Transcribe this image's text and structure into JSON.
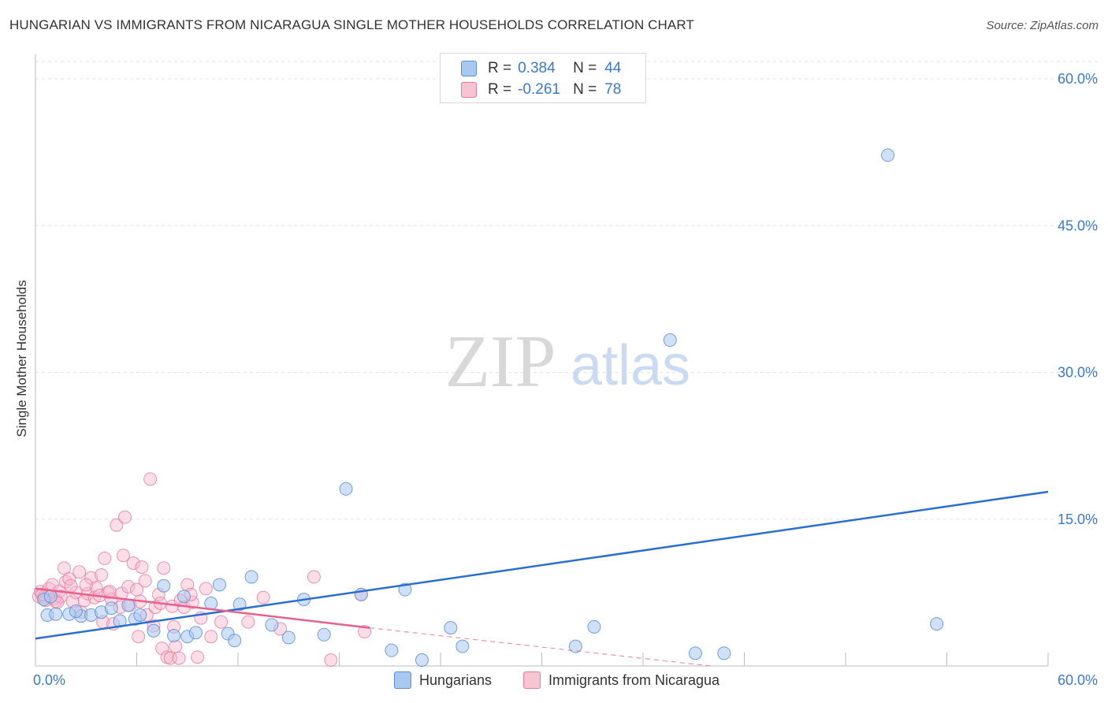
{
  "header": {
    "title": "HUNGARIAN VS IMMIGRANTS FROM NICARAGUA SINGLE MOTHER HOUSEHOLDS CORRELATION CHART",
    "source": "Source: ZipAtlas.com"
  },
  "watermark": {
    "zip": "ZIP",
    "atlas": "atlas"
  },
  "legend_box": {
    "rows": [
      {
        "r_label": "R =",
        "r_value": "0.384",
        "n_label": "N =",
        "n_value": "44"
      },
      {
        "r_label": "R =",
        "r_value": "-0.261",
        "n_label": "N =",
        "n_value": "78"
      }
    ]
  },
  "bottom_legend": [
    "Hungarians",
    "Immigrants from Nicaragua"
  ],
  "colors": {
    "blue_fill": "#a9c8f0",
    "blue_stroke": "#5b8fd6",
    "blue_line": "#2a6fd0",
    "pink_fill": "#f7b6cb",
    "pink_stroke": "#e8799c",
    "pink_line": "#e8608c",
    "tick_label": "#3a78d8",
    "grid": "#e3e3e3"
  },
  "chart_data": {
    "type": "scatter",
    "title": "HUNGARIAN VS IMMIGRANTS FROM NICARAGUA SINGLE MOTHER HOUSEHOLDS CORRELATION CHART",
    "xlabel": "",
    "ylabel": "Single Mother Households",
    "xlim": [
      0,
      60
    ],
    "ylim": [
      0,
      62.5
    ],
    "x_tick_labels": [
      "0.0%",
      "60.0%"
    ],
    "y_ticks": [
      15,
      30,
      45,
      60
    ],
    "y_tick_labels": [
      "15.0%",
      "30.0%",
      "45.0%",
      "60.0%"
    ],
    "grid": true,
    "legend_position": "top-center",
    "series": [
      {
        "name": "Hungarians",
        "R": 0.384,
        "N": 44,
        "trend": {
          "x": [
            0,
            60
          ],
          "y": [
            2.8,
            17.8
          ],
          "style": "solid"
        },
        "points": [
          [
            0.5,
            6.8
          ],
          [
            0.7,
            5.2
          ],
          [
            1.2,
            5.3
          ],
          [
            2.0,
            5.3
          ],
          [
            2.7,
            5.1
          ],
          [
            3.3,
            5.2
          ],
          [
            3.9,
            5.5
          ],
          [
            4.5,
            5.9
          ],
          [
            5.0,
            4.6
          ],
          [
            5.5,
            6.2
          ],
          [
            5.9,
            4.8
          ],
          [
            6.2,
            5.2
          ],
          [
            7.0,
            3.6
          ],
          [
            7.6,
            8.2
          ],
          [
            8.2,
            3.1
          ],
          [
            8.8,
            7.1
          ],
          [
            9.0,
            3.0
          ],
          [
            9.5,
            3.4
          ],
          [
            10.4,
            6.4
          ],
          [
            10.9,
            8.3
          ],
          [
            11.4,
            3.3
          ],
          [
            11.8,
            2.6
          ],
          [
            12.1,
            6.3
          ],
          [
            12.8,
            9.1
          ],
          [
            14.0,
            4.2
          ],
          [
            15.0,
            2.9
          ],
          [
            15.9,
            6.8
          ],
          [
            17.1,
            3.2
          ],
          [
            18.4,
            18.1
          ],
          [
            19.3,
            7.3
          ],
          [
            21.1,
            1.6
          ],
          [
            21.9,
            7.8
          ],
          [
            22.9,
            0.6
          ],
          [
            24.6,
            3.9
          ],
          [
            25.3,
            2.0
          ],
          [
            32.0,
            2.0
          ],
          [
            33.1,
            4.0
          ],
          [
            37.6,
            33.3
          ],
          [
            39.1,
            1.3
          ],
          [
            40.8,
            1.3
          ],
          [
            50.5,
            52.2
          ],
          [
            53.4,
            4.3
          ],
          [
            0.9,
            7.1
          ],
          [
            2.4,
            5.6
          ]
        ]
      },
      {
        "name": "Immigrants from Nicaragua",
        "R": -0.261,
        "N": 78,
        "trend": {
          "x": [
            0,
            19.8
          ],
          "y": [
            7.9,
            3.9
          ],
          "style": "solid",
          "extension": {
            "x": [
              19.8,
              40
            ],
            "y": [
              3.9,
              0.0
            ],
            "style": "dashed"
          }
        },
        "points": [
          [
            0.2,
            7.1
          ],
          [
            0.3,
            7.6
          ],
          [
            0.5,
            7.0
          ],
          [
            0.6,
            6.7
          ],
          [
            0.8,
            7.9
          ],
          [
            1.0,
            8.3
          ],
          [
            1.1,
            6.9
          ],
          [
            1.2,
            6.6
          ],
          [
            1.4,
            7.6
          ],
          [
            1.5,
            7.1
          ],
          [
            1.7,
            10.0
          ],
          [
            1.8,
            8.6
          ],
          [
            2.0,
            8.9
          ],
          [
            2.2,
            6.6
          ],
          [
            2.4,
            7.5
          ],
          [
            2.6,
            9.6
          ],
          [
            2.7,
            5.5
          ],
          [
            2.9,
            6.7
          ],
          [
            3.1,
            7.4
          ],
          [
            3.3,
            9.0
          ],
          [
            3.5,
            7.0
          ],
          [
            3.6,
            8.0
          ],
          [
            3.8,
            7.2
          ],
          [
            3.9,
            9.3
          ],
          [
            4.0,
            4.5
          ],
          [
            4.1,
            11.0
          ],
          [
            4.3,
            7.5
          ],
          [
            4.5,
            6.8
          ],
          [
            4.6,
            4.3
          ],
          [
            4.8,
            14.4
          ],
          [
            5.0,
            6.0
          ],
          [
            5.1,
            7.4
          ],
          [
            5.3,
            15.2
          ],
          [
            5.5,
            8.1
          ],
          [
            5.6,
            6.2
          ],
          [
            5.8,
            10.5
          ],
          [
            6.0,
            7.8
          ],
          [
            6.1,
            3.0
          ],
          [
            6.3,
            10.1
          ],
          [
            6.5,
            8.7
          ],
          [
            6.6,
            5.2
          ],
          [
            6.8,
            19.1
          ],
          [
            7.0,
            4.1
          ],
          [
            7.1,
            6.0
          ],
          [
            7.3,
            7.3
          ],
          [
            7.5,
            1.8
          ],
          [
            7.6,
            10.0
          ],
          [
            7.8,
            0.9
          ],
          [
            8.0,
            0.8
          ],
          [
            8.1,
            6.1
          ],
          [
            8.3,
            2.0
          ],
          [
            8.5,
            0.8
          ],
          [
            8.6,
            6.7
          ],
          [
            8.8,
            6.0
          ],
          [
            9.0,
            8.3
          ],
          [
            9.3,
            6.5
          ],
          [
            9.6,
            0.9
          ],
          [
            9.8,
            4.9
          ],
          [
            10.1,
            7.9
          ],
          [
            10.4,
            3.0
          ],
          [
            11.0,
            4.5
          ],
          [
            12.6,
            4.5
          ],
          [
            13.5,
            7.0
          ],
          [
            14.5,
            3.8
          ],
          [
            16.5,
            9.1
          ],
          [
            17.5,
            0.6
          ],
          [
            19.3,
            7.3
          ],
          [
            19.5,
            3.5
          ],
          [
            0.4,
            7.3
          ],
          [
            1.3,
            6.5
          ],
          [
            2.1,
            8.2
          ],
          [
            3.0,
            8.3
          ],
          [
            4.4,
            7.6
          ],
          [
            5.2,
            11.3
          ],
          [
            6.2,
            6.6
          ],
          [
            7.4,
            6.4
          ],
          [
            8.2,
            4.0
          ],
          [
            9.2,
            7.3
          ]
        ]
      }
    ]
  }
}
